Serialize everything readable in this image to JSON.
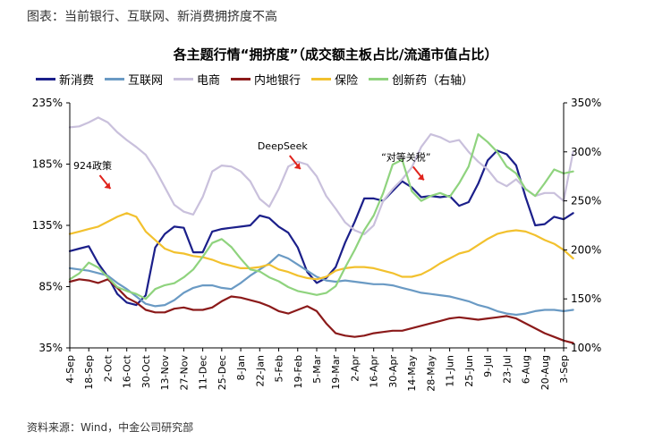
{
  "caption": "图表：当前银行、互联网、新消费拥挤度不高",
  "source": "资料来源：Wind，中金公司研究部",
  "chart_data": {
    "type": "line",
    "title": "各主题行情“拥挤度”（成交额主板占比/流通市值占比）",
    "legend_position": "top",
    "left_axis": {
      "range": [
        35,
        235
      ],
      "ticks": [
        "35%",
        "85%",
        "135%",
        "185%",
        "235%"
      ],
      "tick_values": [
        35,
        85,
        135,
        185,
        235
      ]
    },
    "right_axis": {
      "range": [
        100,
        350
      ],
      "ticks": [
        "100%",
        "150%",
        "200%",
        "250%",
        "300%",
        "350%"
      ],
      "tick_values": [
        100,
        150,
        200,
        250,
        300,
        350
      ]
    },
    "x_ticks": [
      "4-Sep",
      "18-Sep",
      "2-Oct",
      "16-Oct",
      "30-Oct",
      "13-Nov",
      "27-Nov",
      "11-Dec",
      "25-Dec",
      "8-Jan",
      "22-Jan",
      "5-Feb",
      "19-Feb",
      "5-Mar",
      "19-Mar",
      "2-Apr",
      "16-Apr",
      "30-Apr",
      "14-May",
      "28-May",
      "11-Jun",
      "25-Jun",
      "9-Jul",
      "23-Jul",
      "6-Aug",
      "20-Aug",
      "3-Sep"
    ],
    "annotations": [
      {
        "text": "924政策",
        "x": 1.2,
        "y": 181
      },
      {
        "text": "DeepSeek",
        "x": 11.2,
        "y": 197
      },
      {
        "text": "“对等关税”",
        "x": 17.7,
        "y": 188
      }
    ],
    "series": [
      {
        "name": "新消费",
        "axis": "left",
        "color": "#1b1f8a",
        "x": [
          0,
          0.5,
          1,
          1.5,
          2,
          2.5,
          3,
          3.5,
          4,
          4.5,
          5,
          5.5,
          6,
          6.5,
          7,
          7.5,
          8,
          8.5,
          9,
          9.5,
          10,
          10.5,
          11,
          11.5,
          12,
          12.5,
          13,
          13.5,
          14,
          14.5,
          15,
          15.5,
          16,
          16.5,
          17,
          17.5,
          18,
          18.5,
          19,
          19.5,
          20,
          20.5,
          21,
          21.5,
          22,
          22.5,
          23,
          23.5,
          24,
          24.5,
          25,
          25.5,
          26,
          26.5
        ],
        "values": [
          114,
          116,
          118,
          104,
          93,
          79,
          72,
          70,
          78,
          117,
          128,
          134,
          133,
          113,
          113,
          130,
          132,
          133,
          134,
          135,
          143,
          141,
          134,
          129,
          117,
          97,
          88,
          92,
          101,
          121,
          138,
          157,
          157,
          155,
          163,
          171,
          166,
          158,
          159,
          158,
          159,
          151,
          154,
          169,
          188,
          196,
          193,
          184,
          158,
          135,
          136,
          142,
          140,
          145
        ]
      },
      {
        "name": "互联网",
        "axis": "left",
        "color": "#6a9ac4",
        "x": [
          0,
          0.5,
          1,
          1.5,
          2,
          2.5,
          3,
          3.5,
          4,
          4.5,
          5,
          5.5,
          6,
          6.5,
          7,
          7.5,
          8,
          8.5,
          9,
          9.5,
          10,
          10.5,
          11,
          11.5,
          12,
          12.5,
          13,
          13.5,
          14,
          14.5,
          15,
          15.5,
          16,
          16.5,
          17,
          17.5,
          18,
          18.5,
          19,
          19.5,
          20,
          20.5,
          21,
          21.5,
          22,
          22.5,
          23,
          23.5,
          24,
          24.5,
          25,
          25.5,
          26,
          26.5
        ],
        "values": [
          100,
          99,
          98,
          96,
          94,
          88,
          83,
          77,
          71,
          69,
          70,
          74,
          80,
          84,
          86,
          86,
          84,
          83,
          88,
          94,
          99,
          104,
          111,
          108,
          103,
          98,
          93,
          90,
          89,
          90,
          89,
          88,
          87,
          87,
          86,
          84,
          82,
          80,
          79,
          78,
          77,
          75,
          73,
          70,
          68,
          65,
          63,
          62,
          63,
          65,
          66,
          66,
          65,
          66
        ]
      },
      {
        "name": "电商",
        "axis": "right",
        "color": "#c9c0dc",
        "x": [
          0,
          0.5,
          1,
          1.5,
          2,
          2.5,
          3,
          3.5,
          4,
          4.5,
          5,
          5.5,
          6,
          6.5,
          7,
          7.5,
          8,
          8.5,
          9,
          9.5,
          10,
          10.5,
          11,
          11.5,
          12,
          12.5,
          13,
          13.5,
          14,
          14.5,
          15,
          15.5,
          16,
          16.5,
          17,
          17.5,
          18,
          18.5,
          19,
          19.5,
          20,
          20.5,
          21,
          21.5,
          22,
          22.5,
          23,
          23.5,
          24,
          24.5,
          25,
          25.5,
          26,
          26.5
        ],
        "values": [
          325,
          326,
          330,
          335,
          330,
          320,
          312,
          305,
          297,
          282,
          264,
          246,
          239,
          236,
          254,
          280,
          286,
          285,
          280,
          270,
          252,
          244,
          262,
          285,
          290,
          287,
          275,
          255,
          242,
          228,
          220,
          216,
          225,
          250,
          262,
          272,
          284,
          305,
          318,
          315,
          310,
          312,
          300,
          290,
          282,
          270,
          265,
          272,
          262,
          255,
          258,
          258,
          250,
          300
        ]
      },
      {
        "name": "内地银行",
        "axis": "left",
        "color": "#8b1a1a",
        "x": [
          0,
          0.5,
          1,
          1.5,
          2,
          2.5,
          3,
          3.5,
          4,
          4.5,
          5,
          5.5,
          6,
          6.5,
          7,
          7.5,
          8,
          8.5,
          9,
          9.5,
          10,
          10.5,
          11,
          11.5,
          12,
          12.5,
          13,
          13.5,
          14,
          14.5,
          15,
          15.5,
          16,
          16.5,
          17,
          17.5,
          18,
          18.5,
          19,
          19.5,
          20,
          20.5,
          21,
          21.5,
          22,
          22.5,
          23,
          23.5,
          24,
          24.5,
          25,
          25.5,
          26,
          26.5
        ],
        "values": [
          89,
          91,
          90,
          88,
          91,
          84,
          76,
          72,
          66,
          64,
          64,
          67,
          68,
          66,
          66,
          68,
          73,
          77,
          76,
          74,
          72,
          69,
          65,
          63,
          66,
          69,
          65,
          55,
          47,
          45,
          44,
          45,
          47,
          48,
          49,
          49,
          51,
          53,
          55,
          57,
          59,
          60,
          59,
          58,
          59,
          60,
          61,
          59,
          55,
          51,
          47,
          44,
          41,
          39
        ]
      },
      {
        "name": "保险",
        "axis": "left",
        "color": "#f2c12e",
        "x": [
          0,
          0.5,
          1,
          1.5,
          2,
          2.5,
          3,
          3.5,
          4,
          4.5,
          5,
          5.5,
          6,
          6.5,
          7,
          7.5,
          8,
          8.5,
          9,
          9.5,
          10,
          10.5,
          11,
          11.5,
          12,
          12.5,
          13,
          13.5,
          14,
          14.5,
          15,
          15.5,
          16,
          16.5,
          17,
          17.5,
          18,
          18.5,
          19,
          19.5,
          20,
          20.5,
          21,
          21.5,
          22,
          22.5,
          23,
          23.5,
          24,
          24.5,
          25,
          25.5,
          26,
          26.5
        ],
        "values": [
          128,
          130,
          132,
          134,
          138,
          142,
          145,
          142,
          130,
          123,
          116,
          113,
          112,
          110,
          109,
          107,
          104,
          102,
          100,
          100,
          101,
          103,
          99,
          97,
          94,
          92,
          91,
          93,
          98,
          100,
          101,
          101,
          100,
          98,
          96,
          93,
          93,
          95,
          99,
          104,
          108,
          112,
          114,
          119,
          124,
          128,
          130,
          131,
          130,
          127,
          123,
          120,
          115,
          108
        ]
      },
      {
        "name": "创新药（右轴）",
        "axis": "right",
        "color": "#8fd37e",
        "x": [
          0,
          0.5,
          1,
          1.5,
          2,
          2.5,
          3,
          3.5,
          4,
          4.5,
          5,
          5.5,
          6,
          6.5,
          7,
          7.5,
          8,
          8.5,
          9,
          9.5,
          10,
          10.5,
          11,
          11.5,
          12,
          12.5,
          13,
          13.5,
          14,
          14.5,
          15,
          15.5,
          16,
          16.5,
          17,
          17.5,
          18,
          18.5,
          19,
          19.5,
          20,
          20.5,
          21,
          21.5,
          22,
          22.5,
          23,
          23.5,
          24,
          24.5,
          25,
          25.5,
          26,
          26.5
        ],
        "values": [
          170,
          176,
          187,
          182,
          172,
          162,
          158,
          155,
          150,
          160,
          164,
          166,
          172,
          180,
          193,
          207,
          211,
          203,
          191,
          180,
          178,
          172,
          168,
          162,
          158,
          156,
          154,
          156,
          163,
          182,
          200,
          220,
          235,
          258,
          287,
          292,
          260,
          250,
          255,
          258,
          254,
          268,
          285,
          318,
          310,
          300,
          285,
          278,
          262,
          255,
          268,
          282,
          278,
          280
        ]
      }
    ]
  }
}
